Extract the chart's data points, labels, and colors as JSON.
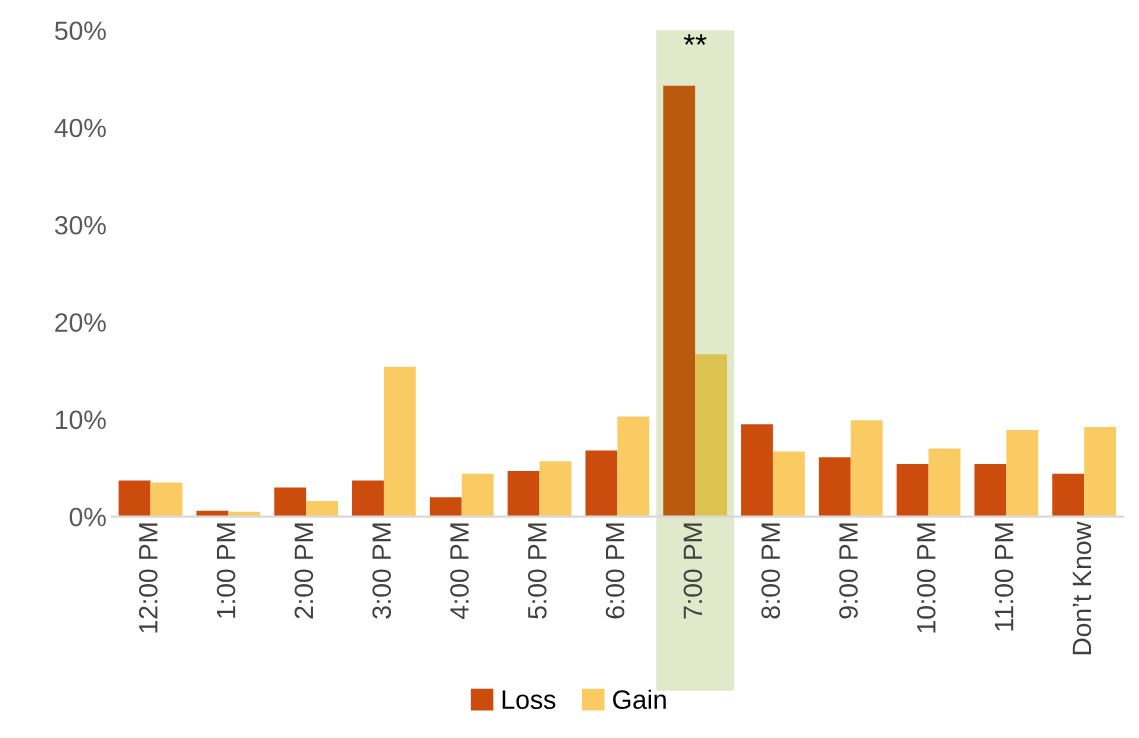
{
  "chart_data": {
    "type": "bar",
    "categories": [
      "12:00 PM",
      "1:00 PM",
      "2:00 PM",
      "3:00 PM",
      "4:00 PM",
      "5:00 PM",
      "6:00 PM",
      "7:00 PM",
      "8:00 PM",
      "9:00 PM",
      "10:00 PM",
      "11:00 PM",
      "Don’t Know"
    ],
    "series": [
      {
        "name": "Loss",
        "color": "#cc4c0e",
        "colors": [
          "#cc4c0e",
          "#cc4c0e",
          "#cc4c0e",
          "#cc4c0e",
          "#cc4c0e",
          "#cc4c0e",
          "#cc4c0e",
          "#b95a0c",
          "#cc4c0e",
          "#cc4c0e",
          "#cc4c0e",
          "#cc4c0e",
          "#cc4c0e"
        ],
        "values": [
          3.7,
          0.6,
          3.0,
          3.7,
          2.0,
          4.7,
          6.8,
          44.3,
          9.5,
          6.1,
          5.4,
          5.4,
          4.4
        ]
      },
      {
        "name": "Gain",
        "color": "#fbcb63",
        "colors": [
          "#fbcb63",
          "#fbcb63",
          "#fbcb63",
          "#fbcb63",
          "#fbcb63",
          "#fbcb63",
          "#fbcb63",
          "#dcc251",
          "#fbcb63",
          "#fbcb63",
          "#fbcb63",
          "#fbcb63",
          "#fbcb63"
        ],
        "values": [
          3.5,
          0.5,
          1.6,
          15.4,
          4.4,
          5.7,
          10.3,
          16.7,
          6.7,
          9.9,
          7.0,
          8.9,
          9.2
        ]
      }
    ],
    "bands": [
      {
        "axis": "x",
        "from": "7:00 PM",
        "to": "7:00 PM",
        "color": "#e1e9cb",
        "label": "**"
      }
    ],
    "ylim": [
      0,
      50
    ],
    "yticks": [
      {
        "value": 0,
        "label": "0%"
      },
      {
        "value": 10,
        "label": "10%"
      },
      {
        "value": 20,
        "label": "20%"
      },
      {
        "value": 30,
        "label": "30%"
      },
      {
        "value": 40,
        "label": "40%"
      },
      {
        "value": 50,
        "label": "50%"
      }
    ],
    "grid": false,
    "legend": "bottom"
  }
}
